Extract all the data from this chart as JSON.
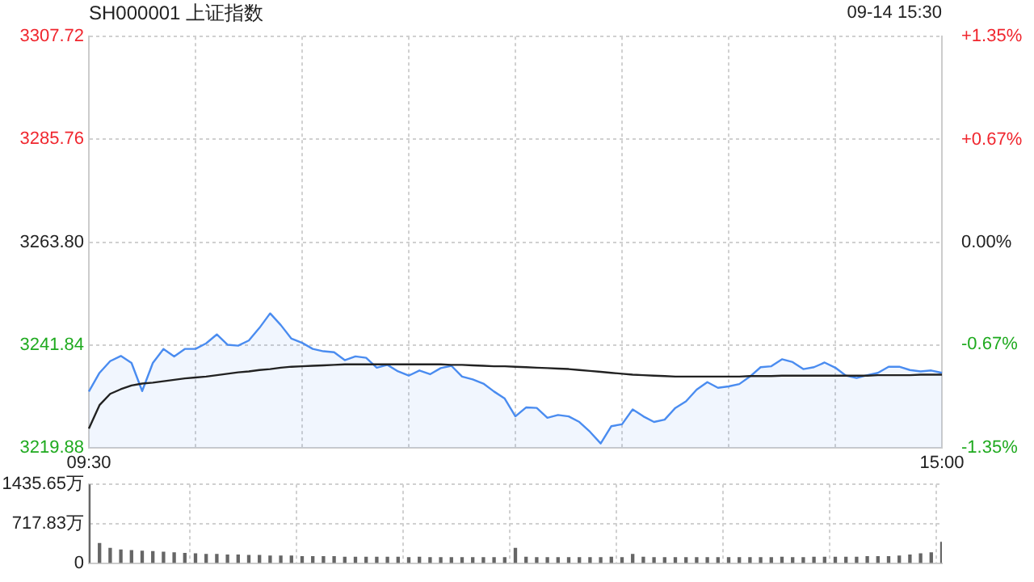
{
  "chart_data": [
    {
      "type": "line",
      "title": "SH000001 上证指数",
      "annotations": [
        "09-14 15:30"
      ],
      "categories": [
        "09:30",
        null,
        null,
        null,
        null,
        null,
        null,
        null,
        null,
        null,
        null,
        null,
        null,
        null,
        null,
        null,
        null,
        null,
        null,
        null,
        null,
        null,
        null,
        null,
        null,
        null,
        null,
        null,
        null,
        null,
        null,
        null,
        null,
        null,
        null,
        null,
        null,
        null,
        null,
        null,
        null,
        null,
        null,
        null,
        null,
        null,
        null,
        null,
        null,
        null,
        null,
        null,
        null,
        null,
        null,
        null,
        null,
        null,
        null,
        null,
        null,
        null,
        null,
        null,
        null,
        null,
        null,
        null,
        null,
        null,
        null,
        null,
        null,
        null,
        null,
        null,
        null,
        null,
        null,
        null,
        "15:00"
      ],
      "ylim": [
        3219.88,
        3307.72
      ],
      "yticks": [
        3219.88,
        3241.84,
        {
          "value": 3263.8,
          "label": "3263.80"
        },
        3285.76,
        3307.72
      ],
      "y2lim": [
        -1.35,
        1.35
      ],
      "y2ticks": [
        {
          "value": -1.35,
          "label": "-1.35%"
        },
        {
          "value": -0.67,
          "label": "-0.67%"
        },
        {
          "value": 0,
          "label": "0.00%"
        },
        {
          "value": 0.67,
          "label": "+0.67%"
        },
        {
          "value": 1.35,
          "label": "+1.35%"
        }
      ],
      "grid": true,
      "series": [
        {
          "type": "area",
          "color": "#4a8cf0",
          "values": [
            3231.9,
            3235.9,
            3238.4,
            3239.5,
            3238.0,
            3232.0,
            3238.0,
            3241.0,
            3239.4,
            3241.0,
            3241.0,
            3242.2,
            3244.1,
            3241.9,
            3241.7,
            3242.8,
            3245.5,
            3248.6,
            3246.1,
            3243.2,
            3242.3,
            3241.0,
            3240.5,
            3240.3,
            3238.6,
            3239.4,
            3239.1,
            3237.0,
            3237.6,
            3236.2,
            3235.3,
            3236.4,
            3235.6,
            3236.9,
            3237.4,
            3235.1,
            3234.5,
            3233.6,
            3231.9,
            3230.4,
            3226.6,
            3228.5,
            3228.4,
            3226.3,
            3226.9,
            3226.6,
            3225.4,
            3223.3,
            3220.8,
            3224.5,
            3224.9,
            3228.1,
            3226.6,
            3225.4,
            3225.9,
            3228.4,
            3229.8,
            3232.3,
            3233.9,
            3232.7,
            3233.0,
            3233.5,
            3235.1,
            3237.1,
            3237.3,
            3238.8,
            3238.2,
            3236.7,
            3237.1,
            3238.1,
            3237.0,
            3235.3,
            3234.8,
            3235.4,
            3235.9,
            3237.2,
            3237.2,
            3236.5,
            3236.2,
            3236.4,
            3235.9
          ]
        },
        {
          "color": "#222222",
          "values": [
            3224.0,
            3229.0,
            3231.4,
            3232.4,
            3233.2,
            3233.6,
            3233.8,
            3234.1,
            3234.4,
            3234.7,
            3234.9,
            3235.1,
            3235.4,
            3235.7,
            3236.0,
            3236.2,
            3236.5,
            3236.7,
            3237.0,
            3237.2,
            3237.3,
            3237.4,
            3237.5,
            3237.6,
            3237.7,
            3237.7,
            3237.7,
            3237.7,
            3237.7,
            3237.7,
            3237.7,
            3237.7,
            3237.7,
            3237.7,
            3237.6,
            3237.6,
            3237.5,
            3237.4,
            3237.3,
            3237.3,
            3237.2,
            3237.1,
            3237.0,
            3236.9,
            3236.8,
            3236.7,
            3236.5,
            3236.3,
            3236.1,
            3235.9,
            3235.7,
            3235.5,
            3235.4,
            3235.3,
            3235.2,
            3235.1,
            3235.1,
            3235.1,
            3235.1,
            3235.1,
            3235.1,
            3235.1,
            3235.2,
            3235.2,
            3235.2,
            3235.3,
            3235.3,
            3235.3,
            3235.3,
            3235.3,
            3235.3,
            3235.3,
            3235.3,
            3235.3,
            3235.4,
            3235.4,
            3235.4,
            3235.4,
            3235.5,
            3235.5,
            3235.5
          ]
        }
      ]
    },
    {
      "type": "bar",
      "grid": true,
      "color": "#666666",
      "categories": [
        null,
        null,
        null,
        null,
        null,
        null,
        null,
        null,
        null,
        null,
        null,
        null,
        null,
        null,
        null,
        null,
        null,
        null,
        null,
        null,
        null,
        null,
        null,
        null,
        null,
        null,
        null,
        null,
        null,
        null,
        null,
        null,
        null,
        null,
        null,
        null,
        null,
        null,
        null,
        null,
        null,
        null,
        null,
        null,
        null,
        null,
        null,
        null,
        null,
        null,
        null,
        null,
        null,
        null,
        null,
        null,
        null,
        null,
        null,
        null,
        null,
        null,
        null,
        null,
        null,
        null,
        null,
        null,
        null,
        null,
        null,
        null,
        null,
        null,
        null,
        null,
        null,
        null,
        null,
        null,
        null
      ],
      "ylim": [
        0,
        1435.65
      ],
      "yticks": [
        0,
        {
          "value": 717.83,
          "label": "717.83万"
        },
        {
          "value": 1435.65,
          "label": "1435.65万"
        }
      ],
      "values": [
        1430,
        360,
        270,
        240,
        230,
        220,
        210,
        200,
        190,
        180,
        170,
        160,
        160,
        150,
        150,
        140,
        140,
        130,
        130,
        130,
        120,
        120,
        120,
        120,
        110,
        110,
        110,
        110,
        110,
        110,
        100,
        110,
        100,
        100,
        100,
        100,
        100,
        100,
        100,
        100,
        270,
        110,
        100,
        100,
        100,
        100,
        100,
        100,
        100,
        110,
        100,
        160,
        110,
        100,
        100,
        100,
        100,
        100,
        100,
        100,
        100,
        100,
        100,
        100,
        100,
        110,
        100,
        100,
        110,
        110,
        110,
        110,
        110,
        120,
        120,
        120,
        130,
        150,
        170,
        190,
        380
      ]
    }
  ]
}
